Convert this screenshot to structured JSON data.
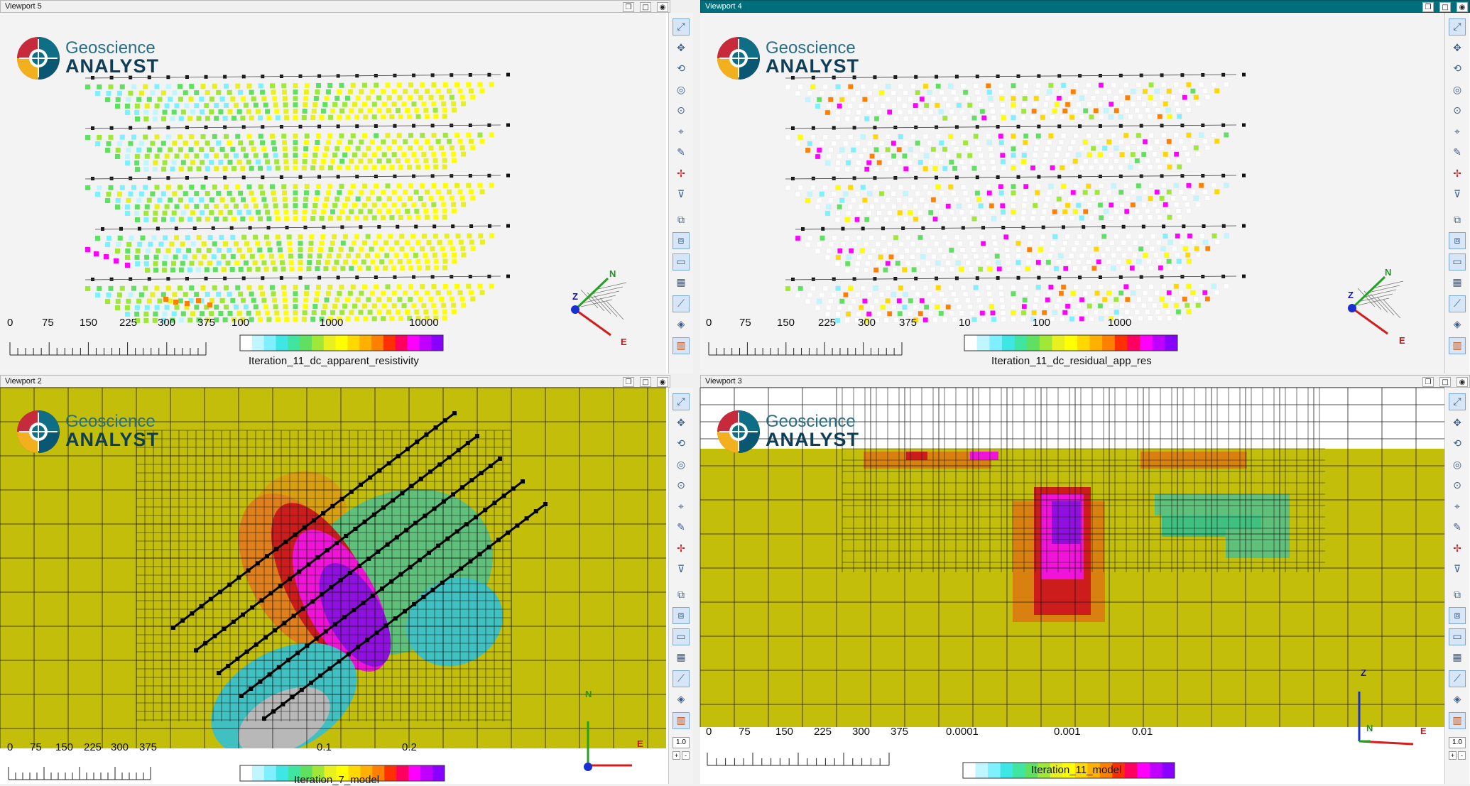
{
  "viewports": {
    "v5": {
      "title": "Viewport 5",
      "scalebar_ticks": [
        "0",
        "75",
        "150",
        "225",
        "300",
        "375"
      ],
      "colorbar": {
        "ticks": [
          "100",
          "1000",
          "10000"
        ],
        "title": "Iteration_11_dc_apparent_resistivity"
      }
    },
    "v4": {
      "title": "Viewport 4",
      "scalebar_ticks": [
        "0",
        "75",
        "150",
        "225",
        "300",
        "375"
      ],
      "colorbar": {
        "ticks": [
          "10",
          "100",
          "1000"
        ],
        "title": "Iteration_11_dc_residual_app_res"
      }
    },
    "v2": {
      "title": "Viewport 2",
      "scalebar_ticks": [
        "0",
        "75",
        "150",
        "225",
        "300",
        "375"
      ],
      "colorbar": {
        "ticks": [
          "0.1",
          "0.2"
        ],
        "title": "Iteration_7_model"
      }
    },
    "v3": {
      "title": "Viewport 3",
      "scalebar_ticks": [
        "0",
        "75",
        "150",
        "225",
        "300",
        "375"
      ],
      "colorbar": {
        "ticks": [
          "0.0001",
          "0.001",
          "0.01"
        ],
        "title": "Iteration_11_model"
      }
    }
  },
  "logo": {
    "line1": "Geoscience",
    "line2": "ANALYST"
  },
  "axes": {
    "north": "N",
    "east": "E",
    "up": "Z"
  },
  "toolbar": {
    "zoom_value": "1.0",
    "plus": "+",
    "minus": "-",
    "icons": [
      "zoom-extent-icon",
      "pan-icon",
      "rotate-icon",
      "focus-icon",
      "orbit-icon",
      "select-icon",
      "ruler-icon",
      "crosshair-icon",
      "clip-icon",
      "box-view-icon",
      "box-active-icon",
      "scale-icon",
      "grid-icon",
      "axes-icon",
      "light-icon",
      "colorbar-icon"
    ]
  },
  "colors": {
    "accent": "#006f7b",
    "model_bg": "#c2be0a",
    "residual_white": "#ffffff"
  }
}
